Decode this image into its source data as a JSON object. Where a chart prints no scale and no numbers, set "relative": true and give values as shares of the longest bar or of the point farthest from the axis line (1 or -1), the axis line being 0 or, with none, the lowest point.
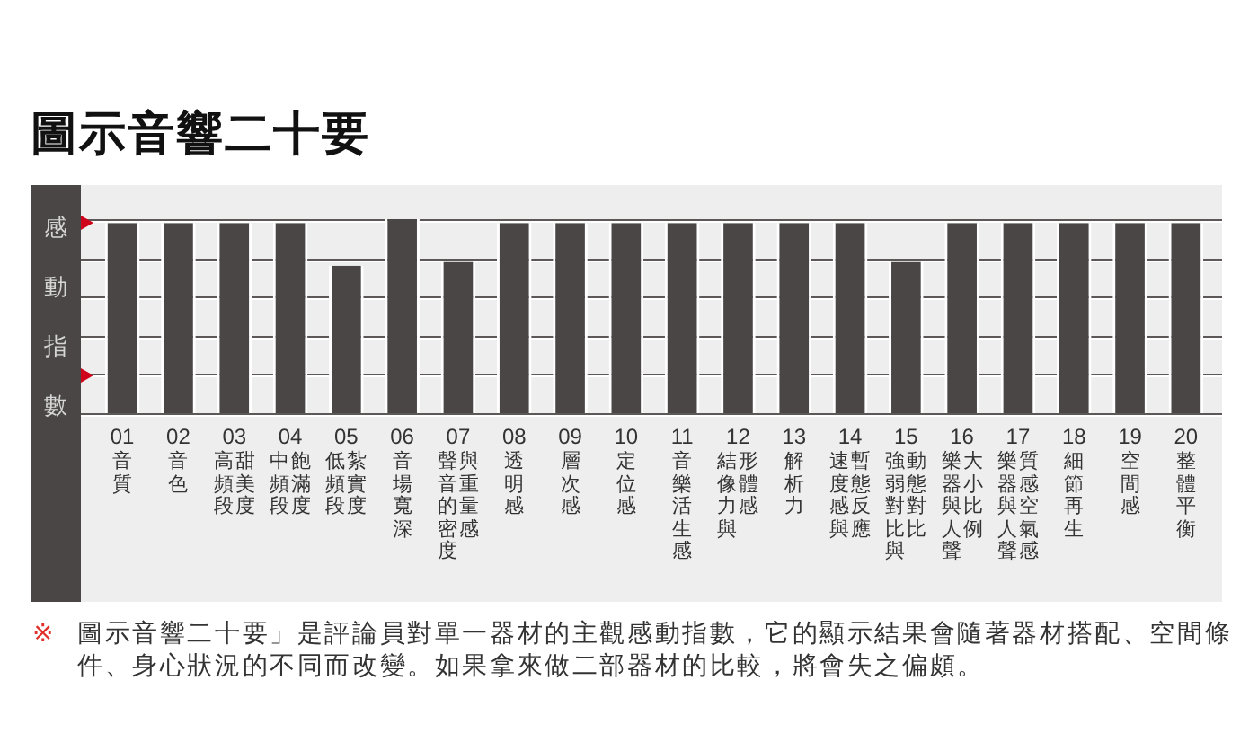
{
  "chart_data": {
    "type": "bar",
    "title": "圖示音響二十要",
    "ylabel": "感動指數",
    "categories": [
      "01\n音質",
      "02\n音色",
      "03\n高頻段甜美度",
      "04\n中頻段飽滿度",
      "05\n低頻段紮實度",
      "06\n音場寬深",
      "07\n聲音的密度與重量感",
      "08\n透明感",
      "09\n層次感",
      "10\n定位感",
      "11\n音樂活生感",
      "12\n結像力與形體感",
      "13\n解析力",
      "14\n速度感與暫態反應",
      "15\n強弱對比與動態對比",
      "16\n樂器與人聲大小比例",
      "17\n樂器與人聲質感空氣感",
      "18\n細節再生",
      "19\n空間感",
      "20\n整體平衡"
    ],
    "values": [
      0.98,
      0.98,
      0.98,
      0.98,
      0.76,
      1,
      0.78,
      0.98,
      0.98,
      0.98,
      0.98,
      0.98,
      0.98,
      0.98,
      0.78,
      0.98,
      0.98,
      0.98,
      0.98,
      0.98
    ],
    "color": "#4a4645",
    "relative": true,
    "grid": "y",
    "annotations": [
      "※ 圖示音響二十要」是評論員對單一器材的主觀感動指數，它的顯示結果會隨著器材搭配、空間條件、身心狀況的不同而改變。如果拿來做二部器材的比較，將會失之偏頗。"
    ]
  }
}
